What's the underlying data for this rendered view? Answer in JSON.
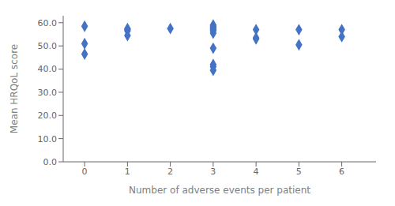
{
  "chart_data": {
    "type": "scatter",
    "xlabel": "Number of adverse events per patient",
    "ylabel": "Mean HRQoL score",
    "x": [
      0,
      0,
      0,
      1,
      1,
      1,
      1,
      2,
      3,
      3,
      3,
      3,
      3,
      3,
      3,
      3,
      3,
      3,
      3,
      4,
      4,
      4,
      5,
      5,
      6,
      6
    ],
    "values": [
      58.5,
      51.0,
      46.5,
      57.5,
      57.0,
      56.5,
      54.5,
      57.5,
      59.0,
      58.5,
      58.0,
      57.5,
      57.0,
      56.5,
      55.5,
      49.0,
      42.0,
      41.0,
      39.5,
      57.0,
      53.5,
      53.0,
      57.0,
      50.5,
      57.0,
      54.0
    ],
    "color": "#4472C4",
    "marker": "diamond",
    "xlim": [
      -0.5,
      6.8
    ],
    "ylim": [
      0.0,
      63.0
    ],
    "xticks": [
      0,
      1,
      2,
      3,
      4,
      5,
      6
    ],
    "yticks": [
      {
        "value": 0,
        "label": "0.0"
      },
      {
        "value": 10,
        "label": "10.0"
      },
      {
        "value": 20,
        "label": "20.0"
      },
      {
        "value": 30,
        "label": "30.0"
      },
      {
        "value": 40,
        "label": "40.0"
      },
      {
        "value": 50,
        "label": "50.0"
      },
      {
        "value": 60,
        "label": "60.0"
      }
    ],
    "grid": false
  }
}
